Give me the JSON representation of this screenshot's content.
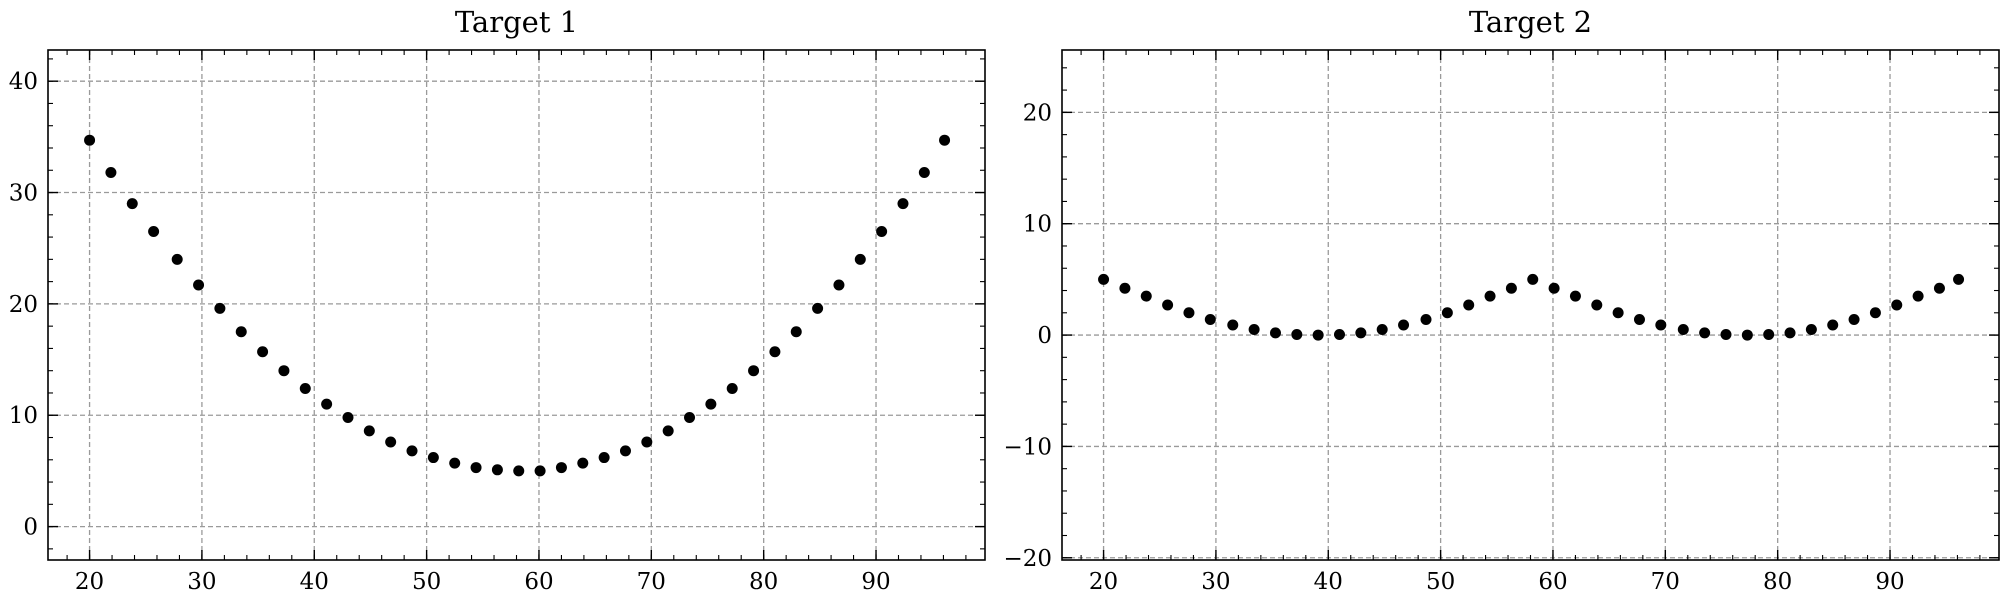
{
  "chart_data": [
    {
      "type": "scatter",
      "title": "Target 1",
      "xlabel": "",
      "ylabel": "",
      "xlim": [
        16.3,
        99.7
      ],
      "ylim": [
        -3,
        42.8
      ],
      "xticks": [
        20,
        30,
        40,
        50,
        60,
        70,
        80,
        90
      ],
      "yticks": [
        0,
        10,
        20,
        30,
        40
      ],
      "xtick_labels": [
        "20",
        "30",
        "40",
        "50",
        "60",
        "70",
        "80",
        "90"
      ],
      "ytick_labels": [
        "0",
        "10",
        "20",
        "30",
        "40"
      ],
      "grid": true,
      "marker_color": "#000000",
      "series": [
        {
          "x": [
            20,
            21.9,
            23.8,
            25.7,
            27.8,
            29.7,
            31.6,
            33.5,
            35.4,
            37.3,
            39.2,
            41.1,
            43.0,
            44.9,
            46.8,
            48.7,
            50.6,
            52.5,
            54.4,
            56.3,
            58.2,
            60.1,
            62.0,
            63.9,
            65.8,
            67.7,
            69.6,
            71.5,
            73.4,
            75.3,
            77.2,
            79.1,
            81.0,
            82.9,
            84.8,
            86.7,
            88.6,
            90.5,
            92.4,
            94.3,
            96.1
          ],
          "y": [
            34.7,
            31.8,
            29.0,
            26.5,
            24.0,
            21.7,
            19.6,
            17.5,
            15.7,
            14.0,
            12.4,
            11.0,
            9.8,
            8.6,
            7.6,
            6.8,
            6.2,
            5.7,
            5.3,
            5.1,
            5.0,
            5.0,
            5.3,
            5.7,
            6.2,
            6.8,
            7.6,
            8.6,
            9.8,
            11.0,
            12.4,
            14.0,
            15.7,
            17.5,
            19.6,
            21.7,
            24.0,
            26.5,
            29.0,
            31.8,
            34.7
          ]
        }
      ]
    },
    {
      "type": "scatter",
      "title": "Target 2",
      "xlabel": "",
      "ylabel": "",
      "xlim": [
        16.3,
        99.7
      ],
      "ylim": [
        -20.2,
        25.6
      ],
      "xticks": [
        20,
        30,
        40,
        50,
        60,
        70,
        80,
        90
      ],
      "yticks": [
        -20,
        -10,
        0,
        10,
        20
      ],
      "xtick_labels": [
        "20",
        "30",
        "40",
        "50",
        "60",
        "70",
        "80",
        "90"
      ],
      "ytick_labels": [
        "−20",
        "−10",
        "0",
        "10",
        "20"
      ],
      "grid": true,
      "marker_color": "#000000",
      "series": [
        {
          "x": [
            20,
            21.9,
            23.8,
            25.7,
            27.6,
            29.5,
            31.5,
            33.4,
            35.3,
            37.2,
            39.1,
            41.0,
            42.9,
            44.8,
            46.7,
            48.7,
            50.6,
            52.5,
            54.4,
            56.3,
            58.2,
            60.1,
            62.0,
            63.9,
            65.8,
            67.7,
            69.6,
            71.6,
            73.5,
            75.4,
            77.3,
            79.2,
            81.1,
            83.0,
            84.9,
            86.8,
            88.7,
            90.6,
            92.5,
            94.4,
            96.1
          ],
          "y": [
            5.0,
            4.2,
            3.5,
            2.7,
            2.0,
            1.4,
            0.9,
            0.5,
            0.2,
            0.05,
            0.0,
            0.05,
            0.2,
            0.5,
            0.9,
            1.4,
            2.0,
            2.7,
            3.5,
            4.2,
            5.0,
            4.2,
            3.5,
            2.7,
            2.0,
            1.4,
            0.9,
            0.5,
            0.2,
            0.05,
            0.0,
            0.05,
            0.2,
            0.5,
            0.9,
            1.4,
            2.0,
            2.7,
            3.5,
            4.2,
            5.0
          ]
        }
      ]
    }
  ]
}
